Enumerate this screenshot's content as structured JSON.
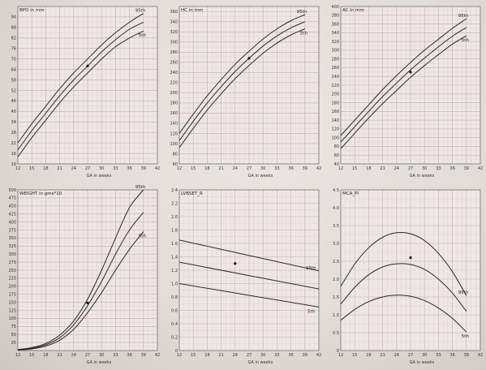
{
  "chart_data": [
    {
      "type": "line",
      "title": "BPD in mm",
      "xlabel": "GA in weeks",
      "xlim": [
        12,
        42
      ],
      "ylim": [
        10,
        100
      ],
      "xticks": [
        12,
        15,
        18,
        21,
        24,
        27,
        30,
        33,
        36,
        39,
        42
      ],
      "yticks": [
        10,
        16,
        22,
        28,
        34,
        40,
        46,
        52,
        58,
        64,
        70,
        76,
        82,
        88,
        94
      ],
      "ytick_labels": [
        "10",
        "16",
        "22",
        "28",
        "34",
        "40",
        "46",
        "52",
        "58",
        "64",
        "70",
        "76",
        "82",
        "88",
        "94"
      ],
      "grid": true,
      "series": [
        {
          "name": "95th",
          "x": [
            12,
            15,
            18,
            21,
            24,
            27,
            30,
            33,
            36,
            39
          ],
          "y": [
            22,
            33,
            43,
            53,
            62,
            70,
            78,
            85,
            91,
            96
          ]
        },
        {
          "name": "",
          "x": [
            12,
            15,
            18,
            21,
            24,
            27,
            30,
            33,
            36,
            39
          ],
          "y": [
            18,
            29,
            39,
            49,
            58,
            66,
            74,
            81,
            87,
            91
          ]
        },
        {
          "name": "5th",
          "x": [
            12,
            15,
            18,
            21,
            24,
            27,
            30,
            33,
            36,
            39
          ],
          "y": [
            14,
            25,
            35,
            45,
            54,
            62,
            70,
            77,
            82,
            86
          ]
        }
      ],
      "marker": {
        "x": 27,
        "y": 66
      }
    },
    {
      "type": "line",
      "title": "HC in mm",
      "xlabel": "GA in weeks",
      "xlim": [
        12,
        42
      ],
      "ylim": [
        60,
        370
      ],
      "xticks": [
        12,
        15,
        18,
        21,
        24,
        27,
        30,
        33,
        36,
        39,
        42
      ],
      "yticks": [
        60,
        80,
        100,
        120,
        140,
        160,
        180,
        200,
        220,
        240,
        260,
        280,
        300,
        320,
        340,
        360
      ],
      "ytick_labels": [
        "60",
        "80",
        "100",
        "120",
        "140",
        "160",
        "180",
        "200",
        "220",
        "240",
        "260",
        "280",
        "300",
        "320",
        "340",
        "360"
      ],
      "grid": true,
      "series": [
        {
          "name": "95th",
          "x": [
            12,
            15,
            18,
            21,
            24,
            27,
            30,
            33,
            36,
            39
          ],
          "y": [
            120,
            158,
            194,
            226,
            256,
            282,
            306,
            326,
            342,
            354
          ]
        },
        {
          "name": "",
          "x": [
            12,
            15,
            18,
            21,
            24,
            27,
            30,
            33,
            36,
            39
          ],
          "y": [
            106,
            144,
            180,
            212,
            242,
            268,
            292,
            312,
            328,
            340
          ]
        },
        {
          "name": "5th",
          "x": [
            12,
            15,
            18,
            21,
            24,
            27,
            30,
            33,
            36,
            39
          ],
          "y": [
            92,
            130,
            166,
            198,
            228,
            254,
            278,
            298,
            314,
            326
          ]
        }
      ],
      "marker": {
        "x": 27,
        "y": 268
      }
    },
    {
      "type": "line",
      "title": "AC in mm",
      "xlabel": "GA in weeks",
      "xlim": [
        12,
        42
      ],
      "ylim": [
        40,
        400
      ],
      "xticks": [
        12,
        15,
        18,
        21,
        24,
        27,
        30,
        33,
        36,
        39,
        42
      ],
      "yticks": [
        40,
        60,
        80,
        100,
        120,
        140,
        160,
        180,
        200,
        220,
        240,
        260,
        280,
        300,
        320,
        340,
        360,
        380,
        400
      ],
      "ytick_labels": [
        "40",
        "60",
        "80",
        "100",
        "120",
        "140",
        "160",
        "180",
        "200",
        "220",
        "240",
        "260",
        "280",
        "300",
        "320",
        "340",
        "360",
        "380",
        "400"
      ],
      "grid": true,
      "series": [
        {
          "name": "95th",
          "x": [
            12,
            15,
            18,
            21,
            24,
            27,
            30,
            33,
            36,
            39
          ],
          "y": [
            105,
            140,
            175,
            210,
            242,
            272,
            300,
            325,
            350,
            372
          ]
        },
        {
          "name": "",
          "x": [
            12,
            15,
            18,
            21,
            24,
            27,
            30,
            33,
            36,
            39
          ],
          "y": [
            90,
            125,
            160,
            194,
            225,
            255,
            282,
            308,
            332,
            352
          ]
        },
        {
          "name": "5th",
          "x": [
            12,
            15,
            18,
            21,
            24,
            27,
            30,
            33,
            36,
            39
          ],
          "y": [
            75,
            110,
            145,
            178,
            208,
            238,
            265,
            290,
            314,
            333
          ]
        }
      ],
      "marker": {
        "x": 27,
        "y": 250
      }
    },
    {
      "type": "line",
      "title": "WEIGHT in gms*10",
      "xlabel": "GA in weeks",
      "xlim": [
        12,
        42
      ],
      "ylim": [
        0,
        500
      ],
      "xticks": [
        12,
        15,
        18,
        21,
        24,
        27,
        30,
        33,
        36,
        39,
        42
      ],
      "yticks": [
        0,
        25,
        50,
        75,
        100,
        125,
        150,
        175,
        200,
        225,
        250,
        275,
        300,
        325,
        350,
        375,
        400,
        425,
        450,
        475,
        500
      ],
      "ytick_labels": [
        "",
        "25",
        "50",
        "75",
        "100",
        "125",
        "150",
        "175",
        "200",
        "225",
        "250",
        "275",
        "300",
        "325",
        "350",
        "375",
        "400",
        "425",
        "450",
        "475",
        "500"
      ],
      "grid": true,
      "series": [
        {
          "name": "95th",
          "x": [
            12,
            15,
            18,
            21,
            24,
            27,
            30,
            33,
            36,
            39
          ],
          "y": [
            3,
            9,
            22,
            48,
            92,
            160,
            250,
            350,
            445,
            500
          ]
        },
        {
          "name": "",
          "x": [
            12,
            15,
            18,
            21,
            24,
            27,
            30,
            33,
            36,
            39
          ],
          "y": [
            2,
            7,
            18,
            40,
            80,
            140,
            215,
            300,
            375,
            430
          ]
        },
        {
          "name": "5th",
          "x": [
            12,
            15,
            18,
            21,
            24,
            27,
            30,
            33,
            36,
            39
          ],
          "y": [
            1,
            5,
            14,
            32,
            66,
            118,
            180,
            250,
            315,
            370
          ]
        }
      ],
      "marker": {
        "x": 27,
        "y": 148
      }
    },
    {
      "type": "line",
      "title": "LVBSET_R",
      "xlabel": "GA in weeks",
      "xlim": [
        12,
        42
      ],
      "ylim": [
        0,
        2.4
      ],
      "xticks": [
        12,
        15,
        18,
        21,
        24,
        27,
        30,
        33,
        36,
        39,
        42
      ],
      "yticks": [
        0,
        0.2,
        0.4,
        0.6,
        0.8,
        1.0,
        1.2,
        1.4,
        1.6,
        1.8,
        2.0,
        2.2,
        2.4
      ],
      "ytick_labels": [
        "0",
        "0.2",
        "0.4",
        "0.6",
        "0.8",
        "1.0",
        "1.2",
        "1.4",
        "1.6",
        "1.8",
        "2.0",
        "2.2",
        "2.4"
      ],
      "grid": true,
      "series": [
        {
          "name": "95th",
          "x": [
            12,
            42
          ],
          "y": [
            1.65,
            1.19
          ]
        },
        {
          "name": "",
          "x": [
            12,
            42
          ],
          "y": [
            1.32,
            0.92
          ]
        },
        {
          "name": "5th",
          "x": [
            12,
            42
          ],
          "y": [
            1.0,
            0.65
          ]
        }
      ],
      "marker": {
        "x": 24,
        "y": 1.3
      }
    },
    {
      "type": "line",
      "title": "MCA_PI",
      "xlabel": "GA in weeks",
      "xlim": [
        12,
        42
      ],
      "ylim": [
        0,
        4.5
      ],
      "xticks": [
        12,
        15,
        18,
        21,
        24,
        27,
        30,
        33,
        36,
        39,
        42
      ],
      "yticks": [
        0,
        0.5,
        1.0,
        1.5,
        2.0,
        2.5,
        3.0,
        3.5,
        4.0,
        4.5
      ],
      "ytick_labels": [
        "0",
        "0.5",
        "1.0",
        "1.5",
        "2.0",
        "2.5",
        "3.0",
        "3.5",
        "4.0",
        "4.5"
      ],
      "grid": true,
      "series": [
        {
          "name": "95th",
          "x": [
            12,
            15,
            18,
            21,
            24,
            27,
            30,
            33,
            36,
            39
          ],
          "y": [
            1.8,
            2.42,
            2.88,
            3.17,
            3.3,
            3.27,
            3.08,
            2.72,
            2.21,
            1.54
          ]
        },
        {
          "name": "",
          "x": [
            12,
            15,
            18,
            21,
            24,
            27,
            30,
            33,
            36,
            39
          ],
          "y": [
            1.3,
            1.77,
            2.12,
            2.34,
            2.43,
            2.41,
            2.27,
            2.0,
            1.61,
            1.1
          ]
        },
        {
          "name": "5th",
          "x": [
            12,
            15,
            18,
            21,
            24,
            27,
            30,
            33,
            36,
            39
          ],
          "y": [
            0.85,
            1.15,
            1.37,
            1.5,
            1.55,
            1.52,
            1.4,
            1.19,
            0.9,
            0.52
          ]
        }
      ],
      "marker": {
        "x": 27,
        "y": 2.6
      }
    }
  ],
  "curve_labels": {
    "c0": {
      "top": "95th",
      "bottom": "5th"
    },
    "c1": {
      "top": "95th",
      "bottom": "5th"
    },
    "c2": {
      "top": "95th",
      "bottom": "5th"
    },
    "c3": {
      "top": "95th",
      "bottom": "5th"
    },
    "c4": {
      "top": "95th",
      "bottom": "5th"
    },
    "c5": {
      "top": "95th",
      "bottom": "5th"
    }
  },
  "colors": {
    "grid": "#c9a9b2",
    "curve": "#2a2a2a",
    "frame": "#777777"
  }
}
